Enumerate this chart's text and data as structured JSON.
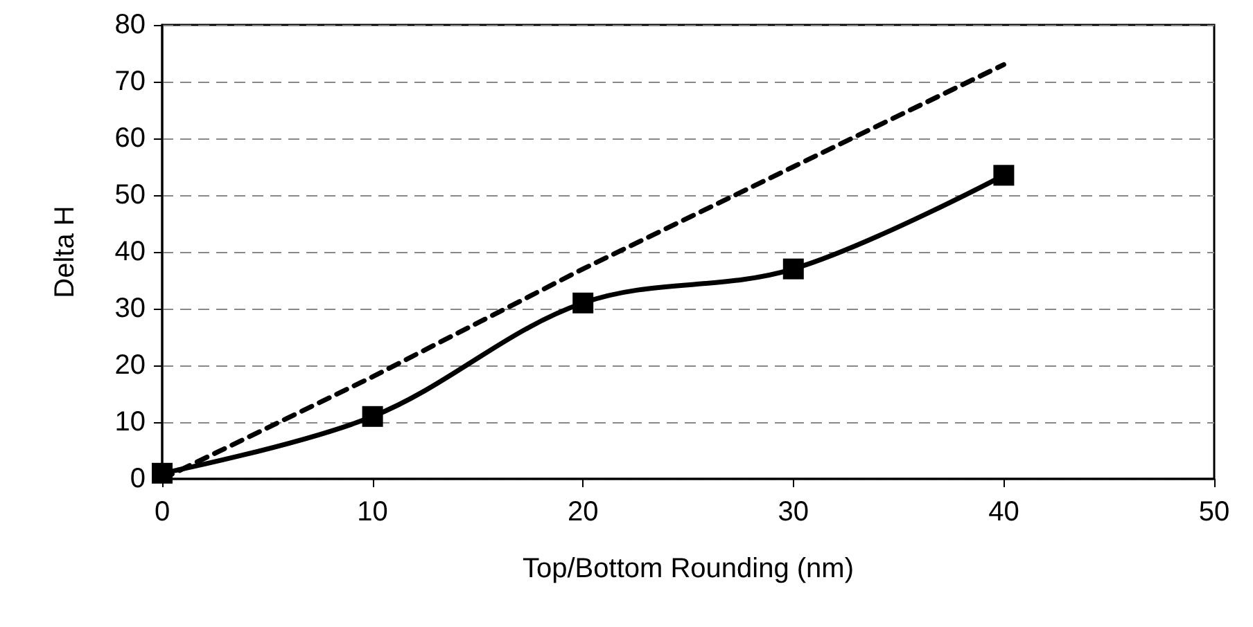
{
  "chart_data": {
    "type": "line",
    "xlabel": "Top/Bottom Rounding (nm)",
    "ylabel": "Delta H",
    "x": [
      0,
      10,
      20,
      30,
      40
    ],
    "series": [
      {
        "color": "#000000",
        "values": [
          1,
          11,
          31,
          37,
          53.5
        ],
        "marker": "square",
        "line_style": "solid"
      },
      {
        "color": "#000000",
        "values": [
          0,
          18,
          37,
          55,
          73
        ],
        "marker": "none",
        "line_style": "dashed"
      }
    ],
    "xlim": [
      0,
      50
    ],
    "xticks": [
      0,
      10,
      20,
      30,
      40,
      50
    ],
    "ylim": [
      0,
      80
    ],
    "yticks": [
      0,
      10,
      20,
      30,
      40,
      50,
      60,
      70,
      80
    ],
    "grid": "y"
  }
}
